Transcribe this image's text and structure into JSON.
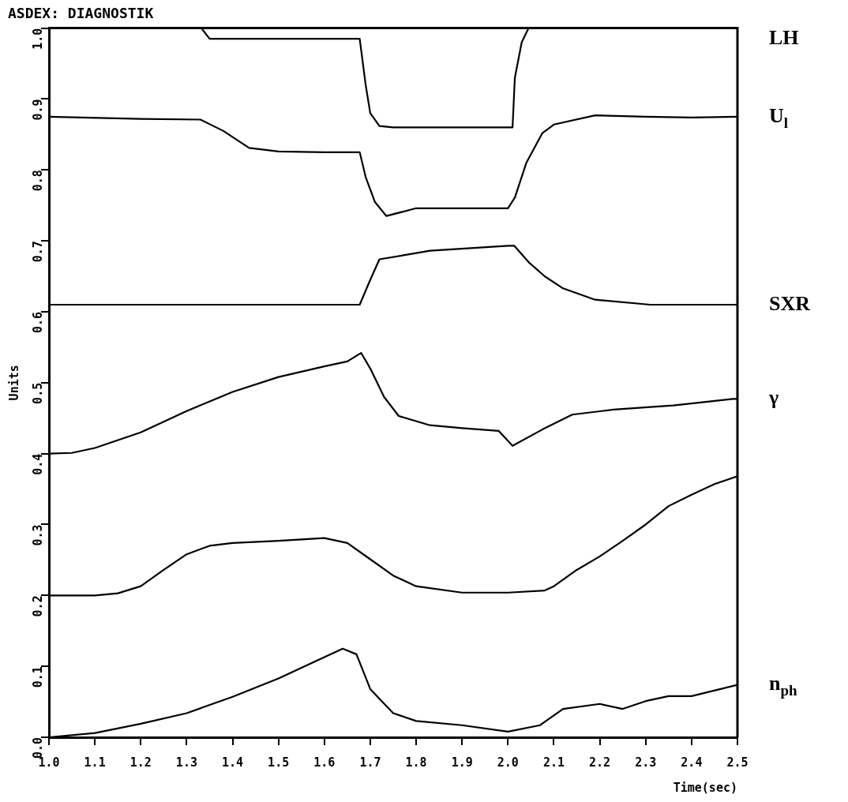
{
  "chart_data": {
    "type": "line",
    "title": "ASDEX: DIAGNOSTIK",
    "xlabel": "Time(sec)",
    "ylabel": "Units",
    "legend": false,
    "grid": false,
    "marker": "none",
    "line_style": "solid",
    "xlim": [
      1,
      2.5
    ],
    "ylim": [
      0,
      1
    ],
    "xticks": [
      {
        "value": 1,
        "label": "1.0"
      },
      1.1,
      1.2,
      1.3,
      1.4,
      1.5,
      1.6,
      1.7,
      1.8,
      1.9,
      {
        "value": 2,
        "label": "2.0"
      },
      2.1,
      2.2,
      2.3,
      2.4,
      2.5
    ],
    "yticks": [
      {
        "value": 0,
        "label": "0.0"
      },
      0.1,
      0.2,
      0.3,
      0.4,
      0.5,
      0.6,
      0.7,
      0.8,
      0.9,
      {
        "value": 1,
        "label": "1.0"
      }
    ],
    "series": [
      {
        "name": "LH",
        "color": "#000000",
        "x": [
          1.332,
          1.35,
          1.677,
          1.69,
          1.7,
          1.72,
          1.75,
          2.01,
          2.015,
          2.03,
          2.045,
          2.5
        ],
        "values": [
          1.0,
          0.985,
          0.985,
          0.92,
          0.88,
          0.862,
          0.86,
          0.86,
          0.93,
          0.98,
          1.0,
          1.0
        ]
      },
      {
        "name": "U$_{l}$",
        "color": "#000000",
        "x": [
          1.0,
          1.2,
          1.33,
          1.38,
          1.436,
          1.5,
          1.6,
          1.677,
          1.69,
          1.71,
          1.735,
          1.8,
          2.0,
          2.015,
          2.04,
          2.075,
          2.1,
          2.19,
          2.3,
          2.4,
          2.5
        ],
        "values": [
          0.875,
          0.872,
          0.871,
          0.855,
          0.831,
          0.826,
          0.825,
          0.825,
          0.79,
          0.755,
          0.735,
          0.746,
          0.746,
          0.761,
          0.81,
          0.852,
          0.864,
          0.877,
          0.875,
          0.874,
          0.875
        ]
      },
      {
        "name": "SXR",
        "color": "#000000",
        "x": [
          1.0,
          1.2,
          1.4,
          1.6,
          1.677,
          1.7,
          1.72,
          1.83,
          2.0,
          2.014,
          2.045,
          2.08,
          2.12,
          2.19,
          2.31,
          2.5
        ],
        "values": [
          0.61,
          0.61,
          0.61,
          0.61,
          0.61,
          0.645,
          0.674,
          0.686,
          0.693,
          0.693,
          0.67,
          0.65,
          0.633,
          0.617,
          0.61,
          0.61
        ]
      },
      {
        "name": "γ",
        "color": "#000000",
        "x": [
          1.0,
          1.05,
          1.1,
          1.2,
          1.3,
          1.4,
          1.5,
          1.6,
          1.65,
          1.68,
          1.7,
          1.73,
          1.762,
          1.83,
          1.9,
          1.98,
          2.01,
          2.075,
          2.14,
          2.23,
          2.36,
          2.49,
          2.5
        ],
        "values": [
          0.4,
          0.401,
          0.408,
          0.43,
          0.46,
          0.487,
          0.508,
          0.523,
          0.53,
          0.542,
          0.52,
          0.48,
          0.453,
          0.44,
          0.436,
          0.432,
          0.411,
          0.434,
          0.455,
          0.462,
          0.468,
          0.477,
          0.477
        ]
      },
      {
        "color": "#000000",
        "x": [
          1.0,
          1.1,
          1.15,
          1.2,
          1.25,
          1.3,
          1.35,
          1.4,
          1.5,
          1.6,
          1.65,
          1.7,
          1.75,
          1.8,
          1.9,
          2.0,
          2.08,
          2.1,
          2.15,
          2.2,
          2.25,
          2.3,
          2.35,
          2.4,
          2.45,
          2.5
        ],
        "values": [
          0.2,
          0.2,
          0.203,
          0.213,
          0.236,
          0.258,
          0.27,
          0.274,
          0.277,
          0.281,
          0.274,
          0.251,
          0.228,
          0.213,
          0.204,
          0.204,
          0.207,
          0.213,
          0.236,
          0.255,
          0.277,
          0.3,
          0.326,
          0.342,
          0.357,
          0.368
        ]
      },
      {
        "name": "n$_{ph}$",
        "color": "#000000",
        "x": [
          1.0,
          1.1,
          1.2,
          1.3,
          1.4,
          1.5,
          1.55,
          1.6,
          1.64,
          1.67,
          1.7,
          1.75,
          1.8,
          1.9,
          2.0,
          2.07,
          2.12,
          2.2,
          2.25,
          2.3,
          2.35,
          2.4,
          2.5
        ],
        "values": [
          0.0,
          0.006,
          0.019,
          0.034,
          0.057,
          0.083,
          0.098,
          0.113,
          0.125,
          0.117,
          0.068,
          0.034,
          0.023,
          0.017,
          0.008,
          0.017,
          0.04,
          0.047,
          0.04,
          0.051,
          0.058,
          0.058,
          0.074
        ]
      }
    ]
  }
}
